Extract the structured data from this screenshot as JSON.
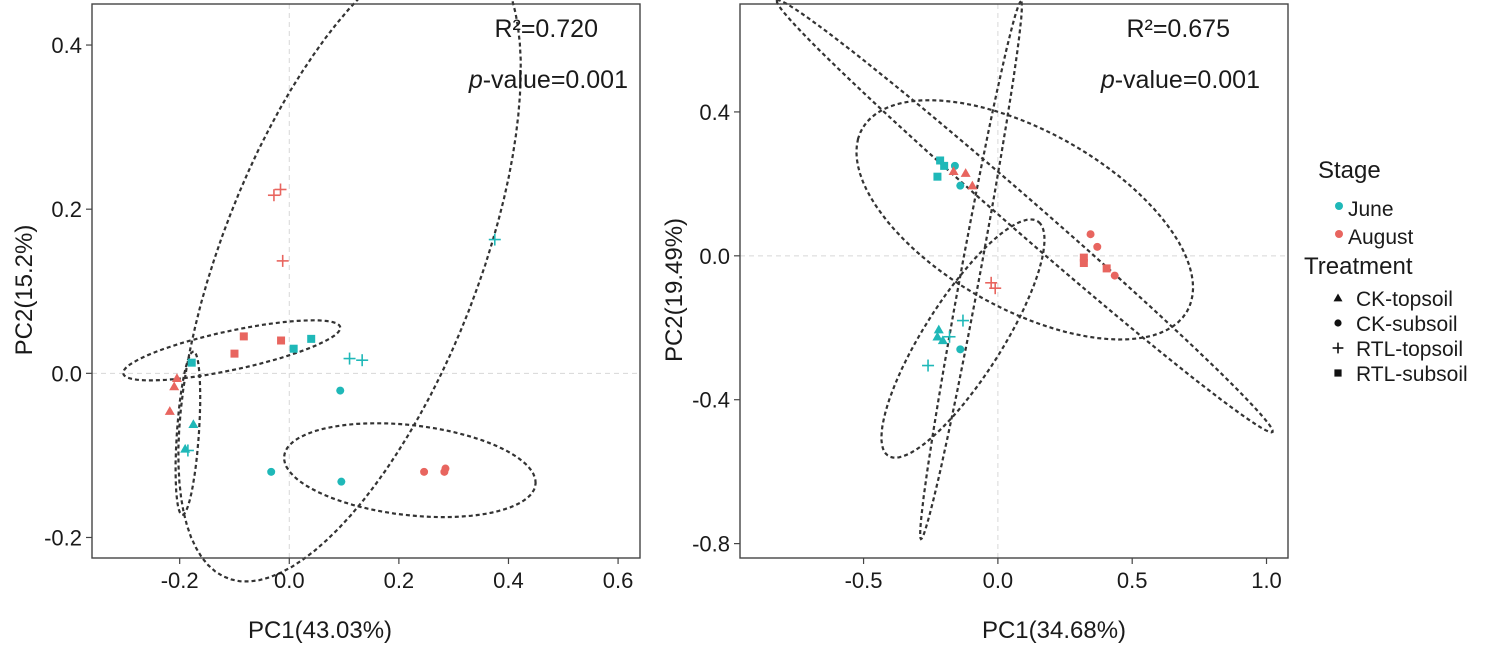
{
  "colors": {
    "june": "#1fb8b8",
    "august": "#e8655f"
  },
  "chart_data": [
    {
      "type": "scatter",
      "xlabel": "PC1(43.03%)",
      "ylabel": "PC2(15.2%)",
      "xlim": [
        -0.36,
        0.64
      ],
      "ylim": [
        -0.225,
        0.45
      ],
      "xticks": [
        -0.2,
        0.0,
        0.2,
        0.4,
        0.6
      ],
      "xtick_labels": [
        "-0.2",
        "0.0",
        "0.2",
        "0.4",
        "0.6"
      ],
      "yticks": [
        -0.2,
        0.0,
        0.2,
        0.4
      ],
      "ytick_labels": [
        "-0.2",
        "0.0",
        "0.2",
        "0.4"
      ],
      "annotations": {
        "r2": "R²=0.720",
        "p_italic": "p",
        "p_rest": "-value=0.001"
      },
      "points": [
        {
          "x": -0.178,
          "y": 0.013,
          "stage": "June",
          "treatment": "RTL-subsoil"
        },
        {
          "x": 0.008,
          "y": 0.03,
          "stage": "June",
          "treatment": "RTL-subsoil"
        },
        {
          "x": 0.04,
          "y": 0.042,
          "stage": "June",
          "treatment": "RTL-subsoil"
        },
        {
          "x": -0.083,
          "y": 0.045,
          "stage": "August",
          "treatment": "RTL-subsoil"
        },
        {
          "x": -0.1,
          "y": 0.024,
          "stage": "August",
          "treatment": "RTL-subsoil"
        },
        {
          "x": -0.015,
          "y": 0.04,
          "stage": "August",
          "treatment": "RTL-subsoil"
        },
        {
          "x": -0.205,
          "y": -0.006,
          "stage": "August",
          "treatment": "CK-topsoil"
        },
        {
          "x": -0.21,
          "y": -0.016,
          "stage": "August",
          "treatment": "CK-topsoil"
        },
        {
          "x": -0.218,
          "y": -0.046,
          "stage": "August",
          "treatment": "CK-topsoil"
        },
        {
          "x": -0.175,
          "y": -0.062,
          "stage": "June",
          "treatment": "CK-topsoil"
        },
        {
          "x": -0.19,
          "y": -0.092,
          "stage": "June",
          "treatment": "CK-topsoil"
        },
        {
          "x": -0.185,
          "y": -0.094,
          "stage": "June",
          "treatment": "RTL-topsoil"
        },
        {
          "x": -0.028,
          "y": 0.217,
          "stage": "August",
          "treatment": "RTL-topsoil"
        },
        {
          "x": -0.016,
          "y": 0.224,
          "stage": "August",
          "treatment": "RTL-topsoil"
        },
        {
          "x": -0.012,
          "y": 0.137,
          "stage": "August",
          "treatment": "RTL-topsoil"
        },
        {
          "x": 0.375,
          "y": 0.163,
          "stage": "June",
          "treatment": "RTL-topsoil"
        },
        {
          "x": 0.11,
          "y": 0.018,
          "stage": "June",
          "treatment": "RTL-topsoil"
        },
        {
          "x": 0.133,
          "y": 0.016,
          "stage": "June",
          "treatment": "RTL-topsoil"
        },
        {
          "x": 0.093,
          "y": -0.021,
          "stage": "June",
          "treatment": "CK-subsoil"
        },
        {
          "x": -0.033,
          "y": -0.12,
          "stage": "June",
          "treatment": "CK-subsoil"
        },
        {
          "x": 0.095,
          "y": -0.132,
          "stage": "June",
          "treatment": "CK-subsoil"
        },
        {
          "x": 0.246,
          "y": -0.12,
          "stage": "August",
          "treatment": "CK-subsoil"
        },
        {
          "x": 0.283,
          "y": -0.12,
          "stage": "August",
          "treatment": "CK-subsoil"
        },
        {
          "x": 0.285,
          "y": -0.116,
          "stage": "August",
          "treatment": "CK-subsoil"
        }
      ],
      "ellipses": [
        {
          "cx": 0.11,
          "cy": 0.135,
          "rx": 0.45,
          "ry": 0.215,
          "angle_deg": 55
        },
        {
          "cx": -0.105,
          "cy": 0.028,
          "rx": 0.2,
          "ry": 0.024,
          "angle_deg": 8
        },
        {
          "cx": -0.185,
          "cy": -0.073,
          "rx": 0.1,
          "ry": 0.02,
          "angle_deg": 84
        },
        {
          "cx": 0.22,
          "cy": -0.118,
          "rx": 0.23,
          "ry": 0.055,
          "angle_deg": -4
        }
      ]
    },
    {
      "type": "scatter",
      "xlabel": "PC1(34.68%)",
      "ylabel": "PC2(19.49%)",
      "xlim": [
        -0.96,
        1.08
      ],
      "ylim": [
        -0.84,
        0.7
      ],
      "xticks": [
        -0.5,
        0.0,
        0.5,
        1.0
      ],
      "xtick_labels": [
        "-0.5",
        "0.0",
        "0.5",
        "1.0"
      ],
      "yticks": [
        -0.8,
        -0.4,
        0.0,
        0.4
      ],
      "ytick_labels": [
        "-0.8",
        "-0.4",
        "0.0",
        "0.4"
      ],
      "annotations": {
        "r2": "R²=0.675",
        "p_italic": "p",
        "p_rest": "-value=0.001"
      },
      "points": [
        {
          "x": -0.215,
          "y": 0.265,
          "stage": "June",
          "treatment": "RTL-subsoil"
        },
        {
          "x": -0.2,
          "y": 0.25,
          "stage": "June",
          "treatment": "RTL-subsoil"
        },
        {
          "x": -0.225,
          "y": 0.22,
          "stage": "June",
          "treatment": "RTL-subsoil"
        },
        {
          "x": -0.16,
          "y": 0.25,
          "stage": "June",
          "treatment": "CK-subsoil"
        },
        {
          "x": -0.14,
          "y": 0.195,
          "stage": "June",
          "treatment": "CK-subsoil"
        },
        {
          "x": -0.165,
          "y": 0.235,
          "stage": "August",
          "treatment": "CK-topsoil"
        },
        {
          "x": -0.12,
          "y": 0.23,
          "stage": "August",
          "treatment": "CK-topsoil"
        },
        {
          "x": -0.095,
          "y": 0.195,
          "stage": "August",
          "treatment": "CK-topsoil"
        },
        {
          "x": 0.345,
          "y": 0.06,
          "stage": "August",
          "treatment": "CK-subsoil"
        },
        {
          "x": 0.37,
          "y": 0.025,
          "stage": "August",
          "treatment": "CK-subsoil"
        },
        {
          "x": 0.32,
          "y": -0.005,
          "stage": "August",
          "treatment": "RTL-subsoil"
        },
        {
          "x": 0.32,
          "y": -0.02,
          "stage": "August",
          "treatment": "RTL-subsoil"
        },
        {
          "x": 0.405,
          "y": -0.035,
          "stage": "August",
          "treatment": "RTL-subsoil"
        },
        {
          "x": 0.435,
          "y": -0.055,
          "stage": "August",
          "treatment": "CK-subsoil"
        },
        {
          "x": -0.025,
          "y": -0.075,
          "stage": "August",
          "treatment": "RTL-topsoil"
        },
        {
          "x": -0.01,
          "y": -0.09,
          "stage": "August",
          "treatment": "RTL-topsoil"
        },
        {
          "x": -0.22,
          "y": -0.205,
          "stage": "June",
          "treatment": "CK-topsoil"
        },
        {
          "x": -0.225,
          "y": -0.225,
          "stage": "June",
          "treatment": "CK-topsoil"
        },
        {
          "x": -0.205,
          "y": -0.235,
          "stage": "June",
          "treatment": "CK-topsoil"
        },
        {
          "x": -0.13,
          "y": -0.18,
          "stage": "June",
          "treatment": "RTL-topsoil"
        },
        {
          "x": -0.18,
          "y": -0.225,
          "stage": "June",
          "treatment": "RTL-topsoil"
        },
        {
          "x": -0.26,
          "y": -0.305,
          "stage": "June",
          "treatment": "RTL-topsoil"
        },
        {
          "x": -0.14,
          "y": -0.26,
          "stage": "June",
          "treatment": "CK-subsoil"
        }
      ],
      "ellipses": [
        {
          "cx": 0.1,
          "cy": 0.1,
          "rx": 0.66,
          "ry": 0.26,
          "angle_deg": 160
        },
        {
          "cx": 0.1,
          "cy": 0.11,
          "rx": 1.1,
          "ry": 0.05,
          "angle_deg": 147
        },
        {
          "cx": -0.1,
          "cy": -0.04,
          "rx": 0.77,
          "ry": 0.035,
          "angle_deg": 76
        },
        {
          "cx": -0.13,
          "cy": -0.23,
          "rx": 0.43,
          "ry": 0.13,
          "angle_deg": 48
        }
      ]
    }
  ],
  "legend": {
    "stage_title": "Stage",
    "stages": [
      {
        "label": "June",
        "key": "June"
      },
      {
        "label": "August",
        "key": "August"
      }
    ],
    "treatment_title": "Treatment",
    "treatments": [
      {
        "label": "CK-topsoil",
        "key": "CK-topsoil"
      },
      {
        "label": "CK-subsoil",
        "key": "CK-subsoil"
      },
      {
        "label": "RTL-topsoil",
        "key": "RTL-topsoil"
      },
      {
        "label": "RTL-subsoil",
        "key": "RTL-subsoil"
      }
    ]
  }
}
